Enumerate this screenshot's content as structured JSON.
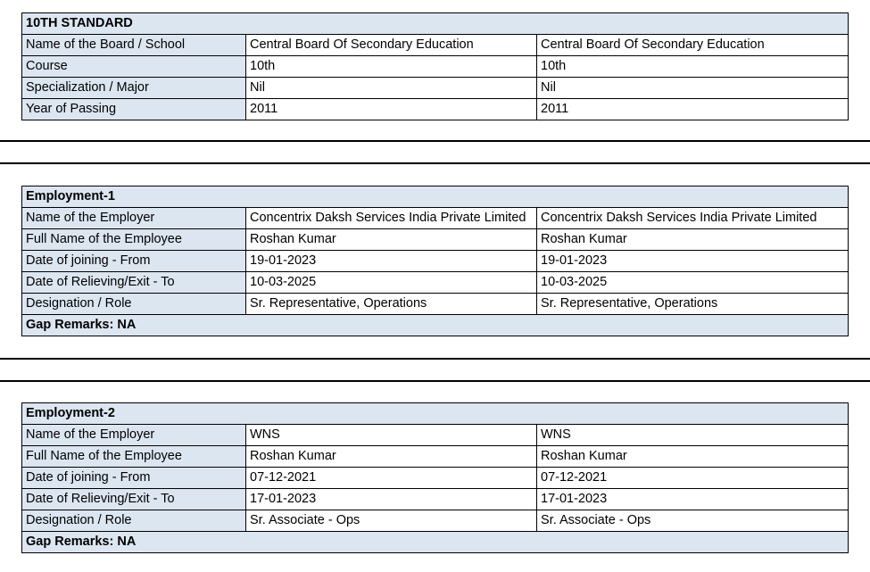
{
  "colors": {
    "label_fill": "#dce6f1",
    "border": "#000000"
  },
  "sections": [
    {
      "title": "10TH STANDARD",
      "rows": [
        {
          "label": "Name of the Board / School",
          "claimed": "Central Board Of Secondary Education",
          "verified": "Central Board Of Secondary Education"
        },
        {
          "label": "Course",
          "claimed": "10th",
          "verified": "10th"
        },
        {
          "label": "Specialization / Major",
          "claimed": "Nil",
          "verified": "Nil"
        },
        {
          "label": "Year of Passing",
          "claimed": "2011",
          "verified": "2011"
        }
      ]
    },
    {
      "title": "Employment-1",
      "rows": [
        {
          "label": "Name of the Employer",
          "claimed": "Concentrix Daksh Services India Private Limited",
          "verified": "Concentrix Daksh Services India Private Limited"
        },
        {
          "label": "Full Name of the Employee",
          "claimed": "Roshan Kumar",
          "verified": "Roshan Kumar"
        },
        {
          "label": "Date of joining - From",
          "claimed": "19-01-2023",
          "verified": "19-01-2023"
        },
        {
          "label": "Date of Relieving/Exit - To",
          "claimed": "10-03-2025",
          "verified": "10-03-2025"
        },
        {
          "label": "Designation / Role",
          "claimed": "Sr. Representative, Operations",
          "verified": "Sr. Representative, Operations"
        }
      ],
      "footer": "Gap Remarks: NA"
    },
    {
      "title": "Employment-2",
      "rows": [
        {
          "label": "Name of the Employer",
          "claimed": "WNS",
          "verified": "WNS"
        },
        {
          "label": "Full Name of the Employee",
          "claimed": "Roshan Kumar",
          "verified": "Roshan Kumar"
        },
        {
          "label": "Date of joining - From",
          "claimed": "07-12-2021",
          "verified": "07-12-2021"
        },
        {
          "label": "Date of Relieving/Exit - To",
          "claimed": "17-01-2023",
          "verified": "17-01-2023"
        },
        {
          "label": "Designation / Role",
          "claimed": "Sr. Associate - Ops",
          "verified": "Sr. Associate - Ops"
        }
      ],
      "footer": "Gap Remarks: NA"
    }
  ]
}
